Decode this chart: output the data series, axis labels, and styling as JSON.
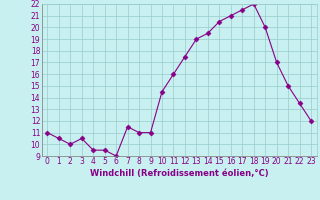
{
  "x": [
    0,
    1,
    2,
    3,
    4,
    5,
    6,
    7,
    8,
    9,
    10,
    11,
    12,
    13,
    14,
    15,
    16,
    17,
    18,
    19,
    20,
    21,
    22,
    23
  ],
  "y": [
    11,
    10.5,
    10,
    10.5,
    9.5,
    9.5,
    9,
    11.5,
    11,
    11,
    14.5,
    16,
    17.5,
    19,
    19.5,
    20.5,
    21,
    21.5,
    22,
    20,
    17,
    15,
    13.5,
    12
  ],
  "xlabel": "Windchill (Refroidissement éolien,°C)",
  "ylim": [
    9,
    22
  ],
  "xlim": [
    -0.5,
    23.5
  ],
  "line_color": "#880088",
  "marker": "D",
  "marker_size": 2.5,
  "bg_color": "#c8f0f0",
  "grid_color": "#99cccc",
  "tick_color": "#880088",
  "label_color": "#880088",
  "yticks": [
    9,
    10,
    11,
    12,
    13,
    14,
    15,
    16,
    17,
    18,
    19,
    20,
    21,
    22
  ],
  "xticks": [
    0,
    1,
    2,
    3,
    4,
    5,
    6,
    7,
    8,
    9,
    10,
    11,
    12,
    13,
    14,
    15,
    16,
    17,
    18,
    19,
    20,
    21,
    22,
    23
  ],
  "tick_fontsize": 5.5,
  "xlabel_fontsize": 6.0
}
